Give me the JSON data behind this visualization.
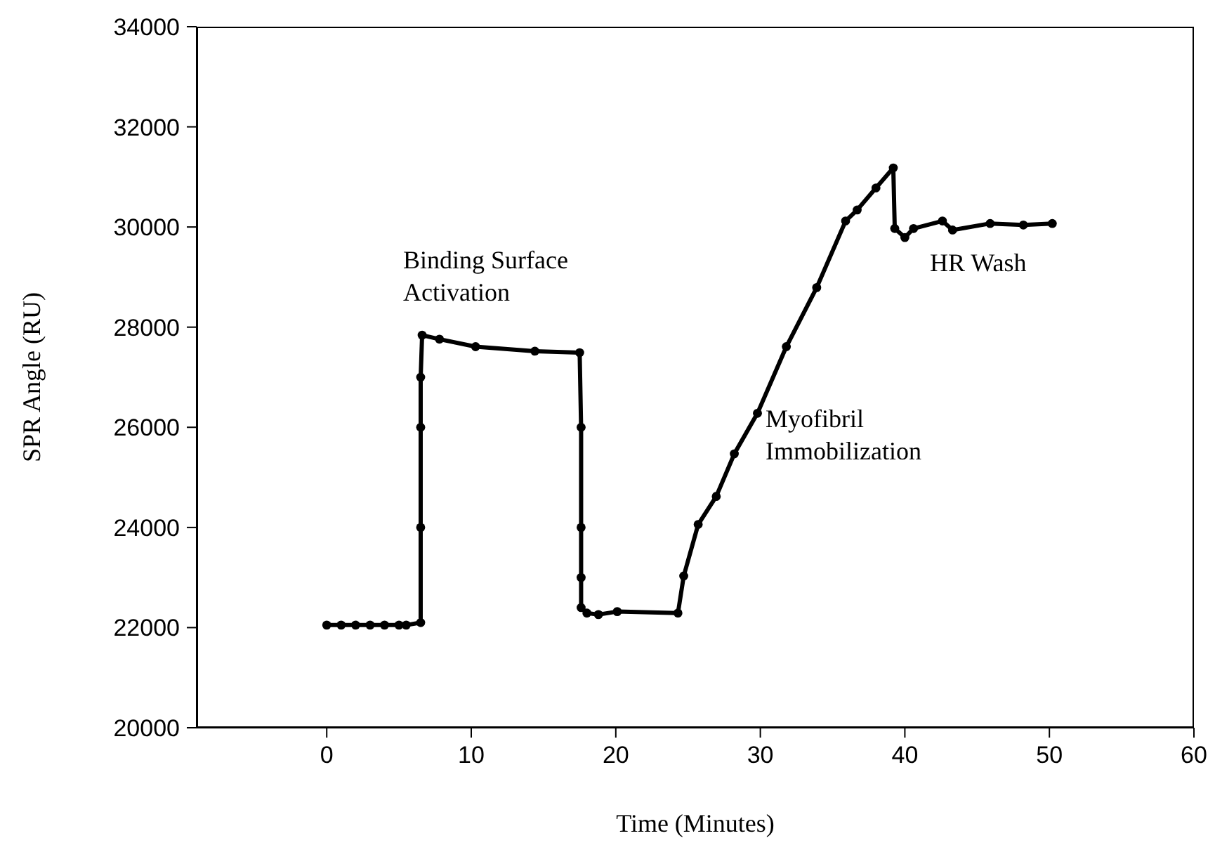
{
  "chart_data": {
    "type": "line",
    "xlabel": "Time (Minutes)",
    "ylabel": "SPR Angle (RU)",
    "x": [
      0,
      1,
      2,
      3,
      4,
      5,
      5.5,
      6.5,
      6.5,
      6.5,
      6.5,
      6.6,
      7.8,
      10.3,
      14.4,
      17.5,
      17.6,
      17.6,
      17.6,
      17.6,
      18.0,
      18.8,
      20.1,
      24.3,
      24.7,
      25.7,
      26.95,
      28.2,
      29.8,
      31.8,
      33.9,
      35.9,
      36.7,
      38.0,
      39.2,
      39.3,
      40.0,
      40.6,
      42.6,
      43.3,
      45.9,
      48.2,
      50.2
    ],
    "series": [
      {
        "color": "#000000",
        "values": [
          22050,
          22050,
          22050,
          22050,
          22050,
          22050,
          22050,
          22100,
          24000,
          26000,
          27000,
          27840,
          27760,
          27610,
          27520,
          27490,
          26000,
          24000,
          23000,
          22400,
          22290,
          22260,
          22320,
          22290,
          23030,
          24060,
          24620,
          25470,
          26280,
          27610,
          28790,
          30120,
          30340,
          30780,
          31180,
          29970,
          29790,
          29970,
          30120,
          29940,
          30070,
          30040,
          30070
        ]
      }
    ],
    "xlim": [
      -9,
      60
    ],
    "xticks": [
      0,
      10,
      20,
      30,
      40,
      50,
      60
    ],
    "ylim": [
      20000,
      34000
    ],
    "yticks": [
      20000,
      22000,
      24000,
      26000,
      28000,
      30000,
      32000,
      34000
    ],
    "grid": false,
    "legend": false,
    "marker": "circle",
    "line_style": "solid",
    "annotations": [
      "Binding Surface\nActivation",
      "Myofibril\nImmobilization",
      "HR Wash"
    ]
  }
}
